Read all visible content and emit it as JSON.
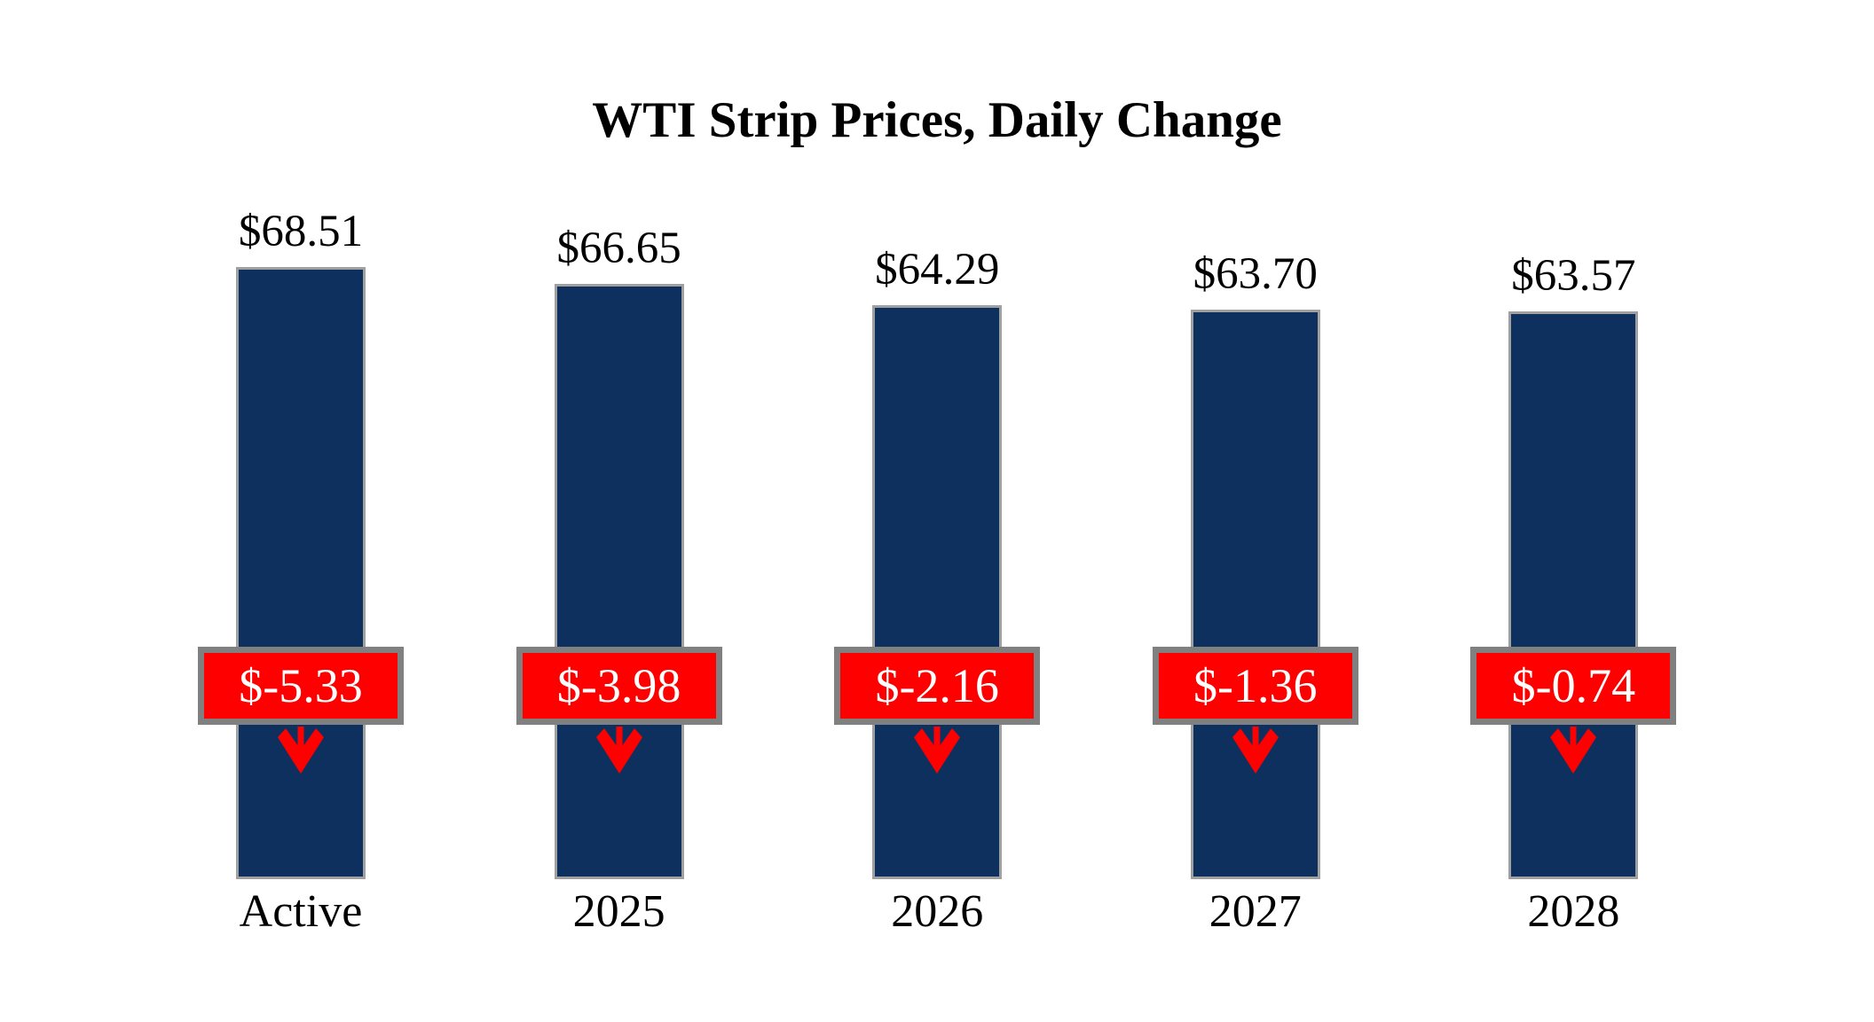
{
  "title": "WTI Strip Prices, Daily Change",
  "chart_data": {
    "type": "bar",
    "title": "WTI Strip Prices, Daily Change",
    "categories": [
      "Active",
      "2025",
      "2026",
      "2027",
      "2028"
    ],
    "series": [
      {
        "name": "Strip Price",
        "values": [
          68.51,
          66.65,
          64.29,
          63.7,
          63.57
        ],
        "labels": [
          "$68.51",
          "$66.65",
          "$64.29",
          "$63.70",
          "$63.57"
        ]
      },
      {
        "name": "Daily Change",
        "values": [
          -5.33,
          -3.98,
          -2.16,
          -1.36,
          -0.74
        ],
        "labels": [
          "$-5.33",
          "$-3.98",
          "$-2.16",
          "$-1.36",
          "$-0.74"
        ]
      }
    ],
    "ylim": [
      0,
      70
    ],
    "grid": false,
    "legend": "none",
    "axes_shown": false,
    "annotations": "red badge with daily change value and red down arrow on each bar",
    "colors": {
      "bar_fill": "#0E305E",
      "bar_border": "#A0A0A0",
      "change_fill": "#FF0000",
      "change_border": "#808080",
      "change_text": "#FFFFFF",
      "label_text": "#000000",
      "arrow": "#FF0000",
      "background": "#FFFFFF"
    }
  }
}
